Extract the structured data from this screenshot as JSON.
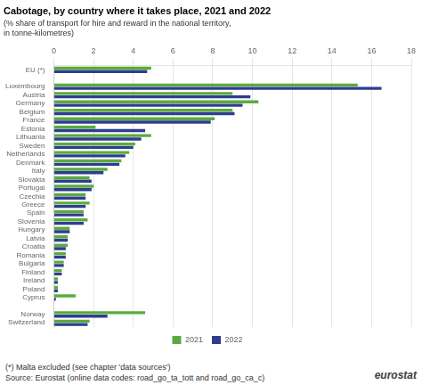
{
  "chart_data": {
    "type": "bar",
    "orientation": "horizontal",
    "title": "Cabotage, by country where it takes place, 2021 and 2022",
    "subtitle": [
      "(% share of transport for hire and reward in the national territory,",
      "in tonne-kilometres)"
    ],
    "categories": [
      "EU (*)",
      null,
      "Luxembourg",
      "Austria",
      "Germany",
      "Belgium",
      "France",
      "Estonia",
      "Lithuania",
      "Sweden",
      "Netherlands",
      "Denmark",
      "Italy",
      "Slovakia",
      "Portugal",
      "Czechia",
      "Greece",
      "Spain",
      "Slovenia",
      "Hungary",
      "Latvia",
      "Croatia",
      "Romania",
      "Bulgaria",
      "Finland",
      "Ireland",
      "Poland",
      "Cyprus",
      null,
      "Norway",
      "Switzerland"
    ],
    "series": [
      {
        "name": "2021",
        "color": "#5aab3f",
        "values": [
          4.9,
          null,
          15.3,
          9.0,
          10.3,
          9.0,
          8.1,
          2.1,
          4.9,
          4.1,
          3.8,
          3.4,
          2.7,
          1.8,
          2.0,
          1.6,
          1.8,
          1.5,
          1.7,
          0.8,
          0.7,
          0.7,
          0.6,
          0.5,
          0.4,
          0.2,
          0.2,
          1.1,
          null,
          4.6,
          1.8
        ]
      },
      {
        "name": "2022",
        "color": "#2e3d8f",
        "values": [
          4.7,
          null,
          16.5,
          9.9,
          9.5,
          9.1,
          7.9,
          4.6,
          4.4,
          4.0,
          3.6,
          3.3,
          2.5,
          1.9,
          1.9,
          1.6,
          1.6,
          1.5,
          1.5,
          0.8,
          0.7,
          0.6,
          0.6,
          0.5,
          0.4,
          0.2,
          0.2,
          0.1,
          null,
          2.7,
          1.7
        ]
      }
    ],
    "xlim": [
      0,
      18
    ],
    "xticks": [
      0,
      2,
      4,
      6,
      8,
      10,
      12,
      14,
      16,
      18
    ],
    "grid": true,
    "legend": "bottom",
    "annotations": [
      "(*) Malta excluded (see chapter 'data sources')",
      "Source: Eurostat (online data codes: road_go_ta_tott and road_go_ca_c)",
      "eurostat"
    ]
  }
}
